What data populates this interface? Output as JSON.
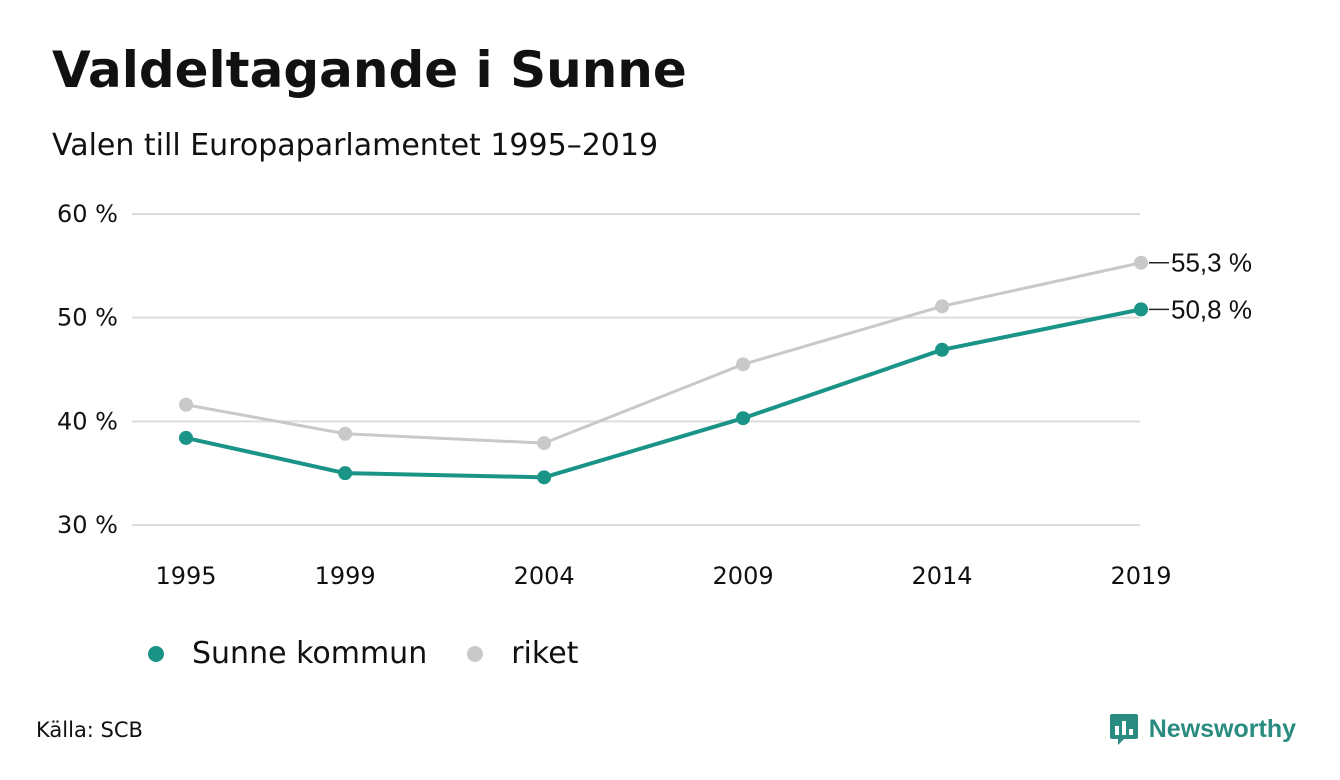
{
  "header": {
    "title": "Valdeltagande i Sunne",
    "subtitle": "Valen till Europaparlamentet 1995–2019"
  },
  "footer": {
    "source": "Källa: SCB",
    "brand": "Newsworthy",
    "brand_icon": "bar-chart-speech-bubble-icon"
  },
  "colors": {
    "sunne": "#1a9486",
    "riket": "#c9c9c9",
    "grid": "#dddddd",
    "brand": "#2a8c80"
  },
  "chart_data": {
    "type": "line",
    "x": [
      "1995",
      "1999",
      "2004",
      "2009",
      "2014",
      "2019"
    ],
    "y_ticks": [
      "60 %",
      "50 %",
      "40 %",
      "30 %"
    ],
    "ylim": [
      30,
      60
    ],
    "grid": true,
    "legend_position": "bottom-left",
    "end_labels": [
      "55,3 %",
      "50,8 %"
    ],
    "series": [
      {
        "name": "Sunne kommun",
        "values": [
          38.4,
          35.0,
          34.6,
          40.3,
          46.9,
          50.8
        ]
      },
      {
        "name": "riket",
        "values": [
          41.6,
          38.8,
          37.9,
          45.5,
          51.1,
          55.3
        ]
      }
    ]
  }
}
